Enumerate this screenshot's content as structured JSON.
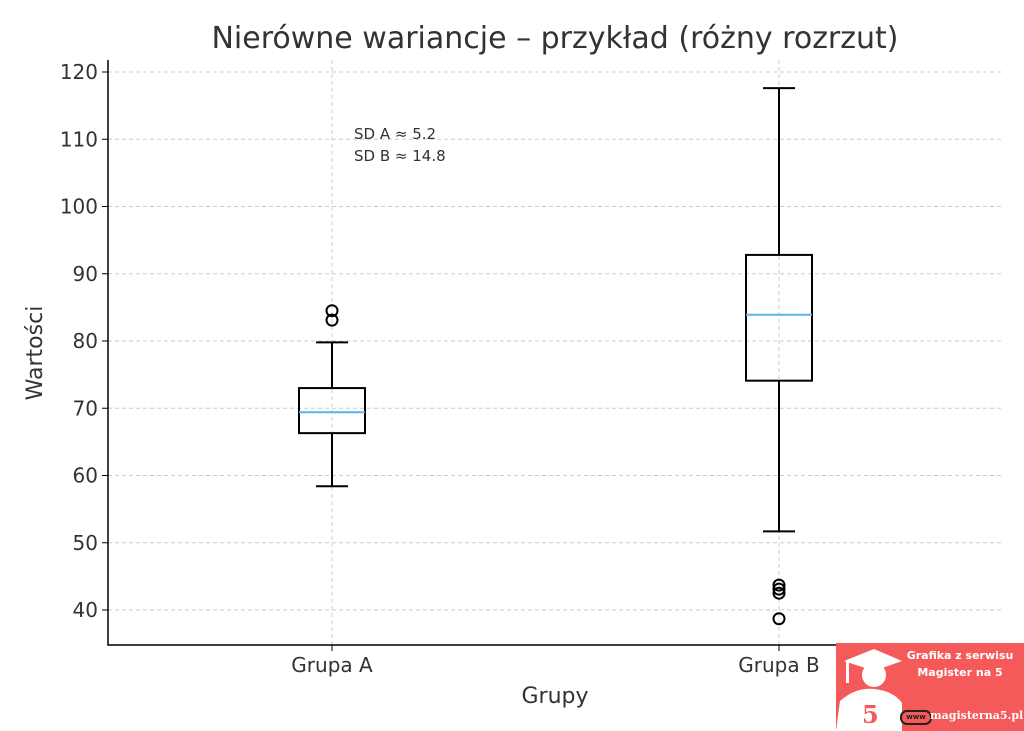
{
  "chart_data": {
    "type": "box",
    "title": "Nierówne wariancje – przykład (różny rozrzut)",
    "xlabel": "Grupy",
    "ylabel": "Wartości",
    "ylim": [
      35,
      122
    ],
    "yticks": [
      40,
      50,
      60,
      70,
      80,
      90,
      100,
      110,
      120
    ],
    "grid": true,
    "categories": [
      "Grupa A",
      "Grupa B"
    ],
    "boxes": [
      {
        "name": "Grupa A",
        "whisker_low": 58.4,
        "q1": 66.3,
        "median": 69.4,
        "q3": 73.0,
        "whisker_high": 79.8,
        "outliers": [
          84.5,
          83.1
        ]
      },
      {
        "name": "Grupa B",
        "whisker_low": 51.7,
        "q1": 74.1,
        "median": 83.9,
        "q3": 92.8,
        "whisker_high": 117.6,
        "outliers": [
          43.7,
          43.1,
          42.5,
          38.7
        ]
      }
    ],
    "annotation": [
      "SD A ≈ 5.2",
      "SD B ≈ 14.8"
    ],
    "colors": {
      "box": "#000000",
      "median": "#5ab4ee",
      "grid": "#cccccc",
      "text": "#333333"
    }
  },
  "watermark": {
    "line1": "Grafika z serwisu",
    "line2": "Magister na 5",
    "url": "magisterna5.pl",
    "www": "www",
    "digit": "5",
    "color": "#f55a5a"
  }
}
